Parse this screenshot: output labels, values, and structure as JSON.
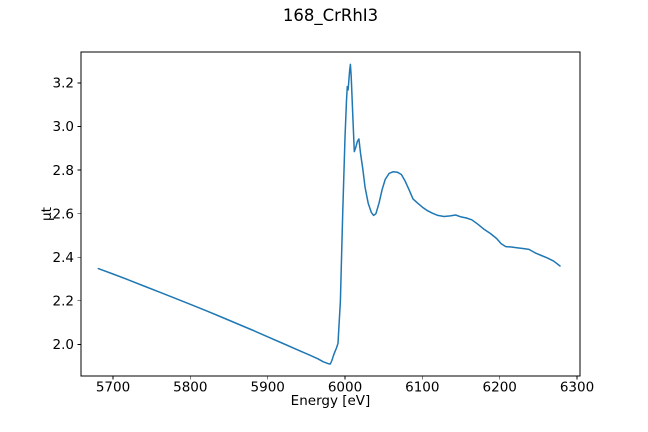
{
  "figure": {
    "title": "168_CrRhI3",
    "background_color": "#ffffff"
  },
  "chart_data": {
    "type": "line",
    "title": "168_CrRhI3",
    "xlabel": "Energy [eV]",
    "ylabel": "μt",
    "xlim": [
      5658.6,
      6303.9
    ],
    "ylim": [
      1.855,
      3.342
    ],
    "x_ticks": [
      "5700",
      "5800",
      "5900",
      "6000",
      "6100",
      "6200",
      "6300"
    ],
    "y_ticks": [
      "2.0",
      "2.2",
      "2.4",
      "2.6",
      "2.8",
      "3.0",
      "3.2"
    ],
    "grid": false,
    "legend": "none",
    "line_color": "#1f77b4",
    "axis_color": "#000000",
    "text_color": "#000000",
    "series": [
      {
        "name": "168_CrRhI3",
        "x": [
          5681,
          5700,
          5720,
          5740,
          5760,
          5780,
          5800,
          5820,
          5840,
          5860,
          5880,
          5900,
          5920,
          5940,
          5955,
          5965,
          5972,
          5978,
          5981,
          5983,
          5985,
          5987,
          5989,
          5991,
          5994,
          5997,
          6000,
          6002,
          6003,
          6004,
          6006,
          6007,
          6008,
          6010,
          6012,
          6014,
          6016,
          6018,
          6020,
          6023,
          6026,
          6030,
          6034,
          6037,
          6040,
          6044,
          6048,
          6052,
          6057,
          6062,
          6068,
          6073,
          6078,
          6083,
          6088,
          6094,
          6100,
          6106,
          6113,
          6120,
          6128,
          6136,
          6143,
          6150,
          6157,
          6164,
          6172,
          6180,
          6188,
          6196,
          6202,
          6208,
          6215,
          6222,
          6230,
          6238,
          6246,
          6254,
          6262,
          6270,
          6278
        ],
        "y": [
          2.348,
          2.323,
          2.296,
          2.268,
          2.24,
          2.212,
          2.184,
          2.155,
          2.126,
          2.096,
          2.066,
          2.035,
          2.004,
          1.973,
          1.95,
          1.934,
          1.92,
          1.912,
          1.91,
          1.926,
          1.948,
          1.966,
          1.984,
          2.005,
          2.2,
          2.6,
          2.95,
          3.12,
          3.183,
          3.168,
          3.255,
          3.285,
          3.23,
          3.06,
          2.885,
          2.905,
          2.932,
          2.943,
          2.878,
          2.805,
          2.72,
          2.648,
          2.606,
          2.592,
          2.6,
          2.648,
          2.71,
          2.757,
          2.785,
          2.792,
          2.79,
          2.78,
          2.748,
          2.708,
          2.668,
          2.648,
          2.63,
          2.615,
          2.602,
          2.592,
          2.587,
          2.59,
          2.594,
          2.585,
          2.58,
          2.572,
          2.551,
          2.528,
          2.509,
          2.486,
          2.462,
          2.449,
          2.447,
          2.444,
          2.44,
          2.436,
          2.42,
          2.408,
          2.396,
          2.382,
          2.36
        ]
      }
    ]
  }
}
